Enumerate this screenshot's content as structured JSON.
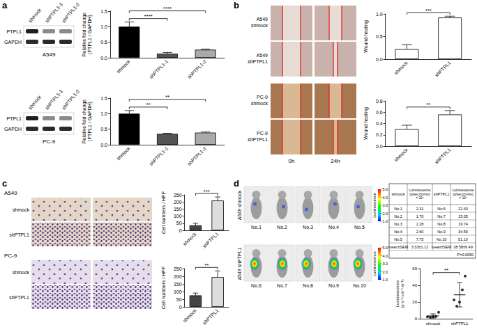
{
  "figure": {
    "a": {
      "label": "a",
      "blots": [
        {
          "cell_line": "A549",
          "lanes": [
            "shmock",
            "shPTPL1-1",
            "shPTPL1-2"
          ],
          "proteins": [
            "PTPL1",
            "GAPDH"
          ]
        },
        {
          "cell_line": "PC-9",
          "lanes": [
            "shmock",
            "shPTPL1-1",
            "shPTPL1-2"
          ],
          "proteins": [
            "PTPL1",
            "GAPDH"
          ]
        }
      ]
    },
    "b": {
      "label": "b",
      "rows": [
        {
          "cell_line": "A549",
          "group": "shmock"
        },
        {
          "cell_line": "A549",
          "group": "shPTPL1"
        },
        {
          "cell_line": "PC-9",
          "group": "shmock"
        },
        {
          "cell_line": "PC-9",
          "group": "shPTPL1"
        }
      ],
      "columns": [
        "0h",
        "24h"
      ]
    },
    "c": {
      "label": "c",
      "groups": [
        {
          "cell_line": "A549",
          "rows": [
            "shmock",
            "shPTPL1"
          ]
        },
        {
          "cell_line": "PC-9",
          "rows": [
            "shmock",
            "shPTPL1"
          ]
        }
      ]
    },
    "d": {
      "label": "d",
      "groups": [
        {
          "name": "A549 shmock",
          "mice": [
            "No.1",
            "No.2",
            "No.3",
            "No.4",
            "No.5"
          ]
        },
        {
          "name": "A549 shPTPL1",
          "mice": [
            "No.6",
            "No.7",
            "No.8",
            "No.9",
            "No.10"
          ]
        }
      ],
      "colorbar": {
        "title": "Luminescence",
        "range": [
          1,
          5
        ],
        "ticks": [
          {
            "value": 5,
            "label": "5.0"
          },
          {
            "value": 4,
            "label": "4.0"
          },
          {
            "value": 3,
            "label": "3.0"
          },
          {
            "value": 2,
            "label": "2.0"
          },
          {
            "value": 1,
            "label": "1.0"
          }
        ]
      },
      "table": {
        "header": [
          "shmock",
          "Luminescence\n(p/sec/cm²/sr)\n× 10⁵",
          "shPTPL1",
          "Luminescence\n(p/sec/cm²/sr)\n× 10⁵"
        ],
        "rows": [
          [
            "No.1",
            "2.31",
            "No.6",
            "22.43"
          ],
          [
            "No.2",
            "1.70",
            "No.7",
            "15.05"
          ],
          [
            "No.3",
            "2.28",
            "No.8",
            "19.74"
          ],
          [
            "No.4",
            "2.60",
            "No.9",
            "34.59"
          ],
          [
            "No.5",
            "7.75",
            "No.10",
            "51.10"
          ],
          [
            "mean±SEM",
            "3.33±1.12",
            "mean±SEM",
            "28.58±6.49"
          ]
        ],
        "footer": "P=0.0050"
      }
    }
  },
  "chart_data": [
    {
      "type": "bar",
      "ylabel": "Relative fold change\n(PTPL1 / GAPDH)",
      "categories": [
        "shmock",
        "shPTPL1-1",
        "shPTPL1-2"
      ],
      "values": [
        1.0,
        0.13,
        0.26
      ],
      "errors": [
        0.15,
        0.04,
        0.02
      ],
      "colors": [
        "#000000",
        "#555555",
        "#aaaaaa"
      ],
      "ylim": [
        0,
        1.5
      ],
      "yticks": [
        {
          "value": 0,
          "label": "0.0"
        },
        0.5,
        {
          "value": 1,
          "label": "1.0"
        },
        1.5
      ],
      "grid": false,
      "significance": [
        {
          "groups": [
            "shmock",
            "shPTPL1-1"
          ],
          "label": "****"
        },
        {
          "groups": [
            "shmock",
            "shPTPL1-2"
          ],
          "label": "****"
        }
      ]
    },
    {
      "type": "bar",
      "ylabel": "Relative fold change\n(PTPL1 / GAPDH)",
      "categories": [
        "shmock",
        "shPTPL1-1",
        "shPTPL1-2"
      ],
      "values": [
        1.0,
        0.35,
        0.39
      ],
      "errors": [
        0.1,
        0.02,
        0.02
      ],
      "colors": [
        "#000000",
        "#555555",
        "#aaaaaa"
      ],
      "ylim": [
        0,
        1.5
      ],
      "yticks": [
        {
          "value": 0,
          "label": "0.0"
        },
        0.5,
        {
          "value": 1,
          "label": "1.0"
        },
        1.5
      ],
      "grid": false,
      "significance": [
        {
          "groups": [
            "shmock",
            "shPTPL1-1"
          ],
          "label": "**"
        },
        {
          "groups": [
            "shmock",
            "shPTPL1-2"
          ],
          "label": "**"
        }
      ]
    },
    {
      "type": "bar",
      "ylabel": "Wound healing",
      "categories": [
        "shmock",
        "shPTPL1"
      ],
      "values": [
        0.22,
        0.92
      ],
      "errors": [
        0.1,
        0.03
      ],
      "colors": [
        "#ffffff",
        "#ffffff"
      ],
      "ylim": [
        0,
        1.0
      ],
      "yticks": [
        {
          "value": 0,
          "label": "0.0"
        },
        0.5,
        {
          "value": 1,
          "label": "1.0"
        }
      ],
      "grid": false,
      "significance": [
        {
          "groups": [
            "shmock",
            "shPTPL1"
          ],
          "label": "***"
        }
      ]
    },
    {
      "type": "bar",
      "ylabel": "Wound healing",
      "categories": [
        "shmock",
        "shPTPL1"
      ],
      "values": [
        0.3,
        0.56
      ],
      "errors": [
        0.07,
        0.07
      ],
      "colors": [
        "#ffffff",
        "#ffffff"
      ],
      "ylim": [
        0,
        0.8
      ],
      "yticks": [
        {
          "value": 0,
          "label": "0.0"
        },
        0.2,
        0.4,
        0.6,
        0.8
      ],
      "grid": false,
      "significance": [
        {
          "groups": [
            "shmock",
            "shPTPL1"
          ],
          "label": "**"
        }
      ]
    },
    {
      "type": "bar",
      "ylabel": "Cell numbers / HPF",
      "categories": [
        "shmock",
        "shPTPL1"
      ],
      "values": [
        35,
        210
      ],
      "errors": [
        15,
        25
      ],
      "colors": [
        "#444444",
        "#dddddd"
      ],
      "ylim": [
        0,
        250
      ],
      "yticks": [
        0,
        50,
        100,
        150,
        200,
        250
      ],
      "grid": false,
      "significance": [
        {
          "groups": [
            "shmock",
            "shPTPL1"
          ],
          "label": "***"
        }
      ]
    },
    {
      "type": "bar",
      "ylabel": "Cell numbers / HPF",
      "categories": [
        "shmock",
        "shPTPL1"
      ],
      "values": [
        75,
        195
      ],
      "errors": [
        15,
        40
      ],
      "colors": [
        "#444444",
        "#dddddd"
      ],
      "ylim": [
        0,
        250
      ],
      "yticks": [
        0,
        50,
        100,
        150,
        200,
        250
      ],
      "grid": false,
      "significance": [
        {
          "groups": [
            "shmock",
            "shPTPL1"
          ],
          "label": "**"
        }
      ]
    },
    {
      "type": "scatter",
      "ylabel": "Luminescence\n(p·s⁻¹·cm⁻²·sr⁻¹)",
      "categories": [
        "shmock",
        "shPTPL1"
      ],
      "points": [
        [
          2.31,
          1.7,
          2.28,
          2.6,
          7.75
        ],
        [
          22.43,
          15.05,
          19.74,
          34.59,
          51.1
        ]
      ],
      "means": [
        3.33,
        28.58
      ],
      "errors": [
        2.5,
        14.51
      ],
      "color": "#000000",
      "marker": "circle",
      "ylim": [
        0,
        60
      ],
      "yticks": [
        0,
        20,
        40,
        60
      ],
      "grid": false,
      "significance": [
        {
          "groups": [
            "shmock",
            "shPTPL1"
          ],
          "label": "**"
        }
      ]
    }
  ]
}
